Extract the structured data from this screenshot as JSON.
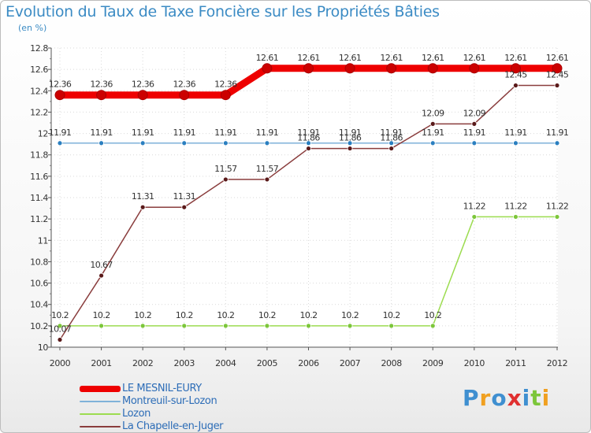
{
  "chart_data": {
    "type": "line",
    "title": "Evolution du Taux de Taxe Foncière sur les Propriétés Bâties",
    "subtitle": "(en %)",
    "x": [
      "2000",
      "2001",
      "2002",
      "2003",
      "2004",
      "2005",
      "2006",
      "2007",
      "2008",
      "2009",
      "2010",
      "2011",
      "2012"
    ],
    "ylim": [
      10,
      12.8
    ],
    "yticks": [
      10,
      10.2,
      10.4,
      10.6,
      10.8,
      11,
      11.2,
      11.4,
      11.6,
      11.8,
      12,
      12.2,
      12.4,
      12.6,
      12.8
    ],
    "ytick_labels": [
      "10",
      "10.2",
      "10.4",
      "10.6",
      "10.8",
      "11",
      "11.2",
      "11.4",
      "11.6",
      "11.8",
      "12",
      "12.2",
      "12.4",
      "12.6",
      "12.8"
    ],
    "series": [
      {
        "name": "LE MESNIL-EURY",
        "color": "#ee0000",
        "marker": "#cc0000",
        "emphasis": true,
        "values": [
          12.36,
          12.36,
          12.36,
          12.36,
          12.36,
          12.61,
          12.61,
          12.61,
          12.61,
          12.61,
          12.61,
          12.61,
          12.61
        ],
        "labels": [
          "12.36",
          "12.36",
          "12.36",
          "12.36",
          "12.36",
          "12.61",
          "12.61",
          "12.61",
          "12.61",
          "12.61",
          "12.61",
          "12.61",
          "12.61"
        ]
      },
      {
        "name": "Montreuil-sur-Lozon",
        "color": "#7fb2d9",
        "marker": "#2a7fc0",
        "emphasis": false,
        "values": [
          11.91,
          11.91,
          11.91,
          11.91,
          11.91,
          11.91,
          11.91,
          11.91,
          11.91,
          11.91,
          11.91,
          11.91,
          11.91
        ],
        "labels": [
          "11.91",
          "11.91",
          "11.91",
          "11.91",
          "11.91",
          "11.91",
          "11.91",
          "11.91",
          "11.91",
          "11.91",
          "11.91",
          "11.91",
          "11.91"
        ]
      },
      {
        "name": "Lozon",
        "color": "#9cdc50",
        "marker": "#7cc63a",
        "emphasis": false,
        "values": [
          10.2,
          10.2,
          10.2,
          10.2,
          10.2,
          10.2,
          10.2,
          10.2,
          10.2,
          10.2,
          11.22,
          11.22,
          11.22
        ],
        "labels": [
          "10.2",
          "10.2",
          "10.2",
          "10.2",
          "10.2",
          "10.2",
          "10.2",
          "10.2",
          "10.2",
          "10.2",
          "11.22",
          "11.22",
          "11.22"
        ]
      },
      {
        "name": "La Chapelle-en-Juger",
        "color": "#8a3d3d",
        "marker": "#5a1a1a",
        "emphasis": false,
        "values": [
          10.07,
          10.67,
          11.31,
          11.31,
          11.57,
          11.57,
          11.86,
          11.86,
          11.86,
          12.09,
          12.09,
          12.45,
          12.45
        ],
        "labels": [
          "10.07",
          "10.67",
          "11.31",
          "11.31",
          "11.57",
          "11.57",
          "11.86",
          "11.86",
          "11.86",
          "12.09",
          "12.09",
          "12.45",
          "12.45"
        ]
      }
    ]
  },
  "logo": {
    "text": "Proxiti",
    "letters": [
      {
        "ch": "P",
        "color": "#3f8fd0"
      },
      {
        "ch": "r",
        "color": "#f0a020"
      },
      {
        "ch": "o",
        "color": "#3f8fd0"
      },
      {
        "ch": "x",
        "color": "#e03030"
      },
      {
        "ch": "i",
        "color": "#3f8fd0"
      },
      {
        "ch": "t",
        "color": "#7cc63a"
      },
      {
        "ch": "i",
        "color": "#f0a020"
      }
    ]
  }
}
